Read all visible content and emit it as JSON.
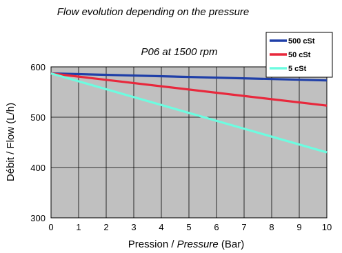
{
  "chart_data": {
    "type": "line",
    "title": "Flow evolution depending on the pressure",
    "subtitle": "P06 at 1500 rpm",
    "xlabel_prefix": "Pression / ",
    "xlabel_italic": "Pressure",
    "xlabel_suffix": " (Bar)",
    "ylabel": "Débit / Flow (L/h)",
    "xlim": [
      0,
      10
    ],
    "ylim": [
      300,
      600
    ],
    "x_ticks": [
      0,
      1,
      2,
      3,
      4,
      5,
      6,
      7,
      8,
      9,
      10
    ],
    "y_ticks": [
      300,
      400,
      500,
      600
    ],
    "grid": true,
    "legend_position": "top-right",
    "plot_background": "#c0c0c0",
    "series": [
      {
        "name": "500 cSt",
        "color": "#1f3fa8",
        "x": [
          0,
          10
        ],
        "y": [
          587,
          573
        ]
      },
      {
        "name": "50 cSt",
        "color": "#e8283c",
        "x": [
          0,
          10
        ],
        "y": [
          587,
          523
        ]
      },
      {
        "name": "5 cSt",
        "color": "#6dfce0",
        "x": [
          0,
          10
        ],
        "y": [
          587,
          430
        ]
      }
    ]
  }
}
